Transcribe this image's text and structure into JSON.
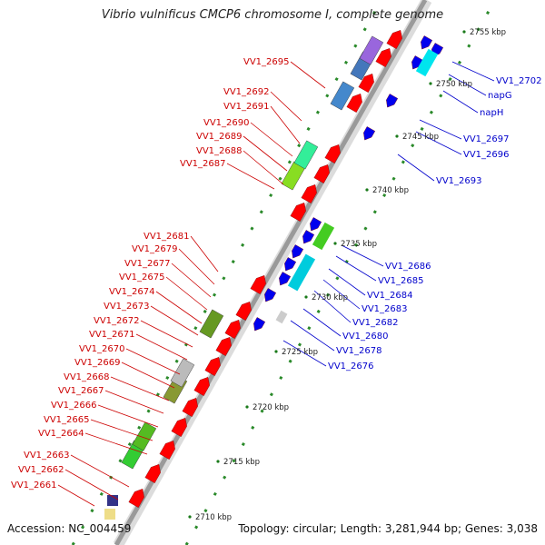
{
  "title": "Vibrio vulnificus CMCP6 chromosome I, complete genome",
  "accession": "Accession: NC_004459",
  "summary": "Topology: circular; Length: 3,281,944 bp; Genes: 3,038",
  "colors": {
    "backbone": "#9a9a9a",
    "forward_label": "#cc0000",
    "reverse_label": "#0000cc",
    "dot_track": "#2a8a2a",
    "cds": "#ff0000",
    "cds_reverse": "#0000ee"
  },
  "scale_ticks": [
    "2710 kbp",
    "2715 kbp",
    "2720 kbp",
    "2725 kbp",
    "2730 kbp",
    "2735 kbp",
    "2740 kbp",
    "2745 kbp",
    "2750 kbp",
    "2755 kbp"
  ],
  "forward_genes": [
    "VV1_2695",
    "VV1_2692",
    "VV1_2691",
    "VV1_2690",
    "VV1_2689",
    "VV1_2688",
    "VV1_2687",
    "VV1_2681",
    "VV1_2679",
    "VV1_2677",
    "VV1_2675",
    "VV1_2674",
    "VV1_2673",
    "VV1_2672",
    "VV1_2671",
    "VV1_2670",
    "VV1_2669",
    "VV1_2668",
    "VV1_2667",
    "VV1_2666",
    "VV1_2665",
    "VV1_2664",
    "VV1_2663",
    "VV1_2662",
    "VV1_2661"
  ],
  "reverse_genes": [
    "VV1_2702",
    "napG",
    "napH",
    "VV1_2697",
    "VV1_2696",
    "VV1_2693",
    "VV1_2686",
    "VV1_2685",
    "VV1_2684",
    "VV1_2683",
    "VV1_2682",
    "VV1_2680",
    "VV1_2678",
    "VV1_2676"
  ]
}
